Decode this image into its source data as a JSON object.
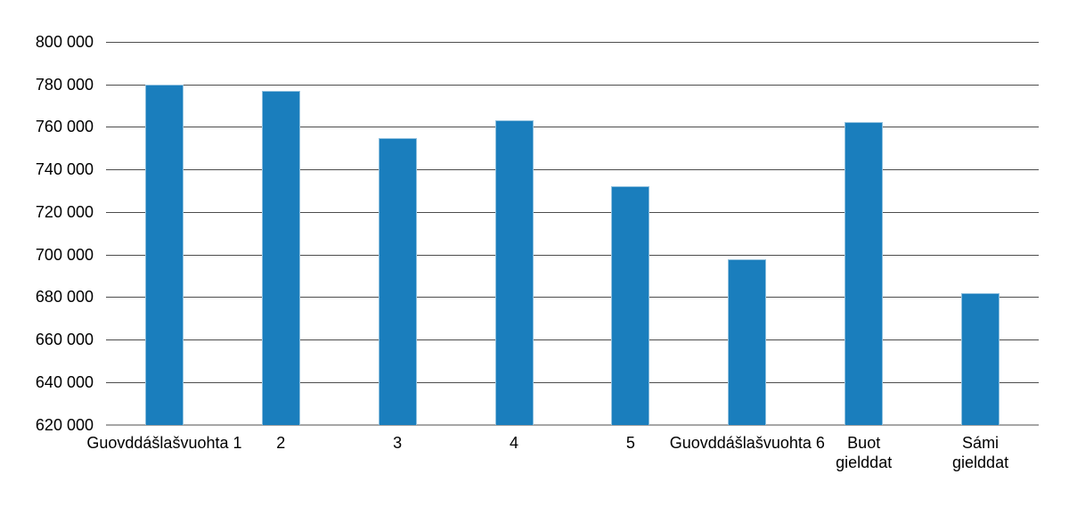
{
  "chart_data": {
    "type": "bar",
    "title": "",
    "xlabel": "",
    "ylabel": "",
    "legend": "none",
    "grid": true,
    "ylim": [
      620000,
      800000
    ],
    "ytick_step": 20000,
    "yticks": [
      {
        "value": 620000,
        "label": "620 000"
      },
      {
        "value": 640000,
        "label": "640 000"
      },
      {
        "value": 660000,
        "label": "660 000"
      },
      {
        "value": 680000,
        "label": "680 000"
      },
      {
        "value": 700000,
        "label": "700 000"
      },
      {
        "value": 720000,
        "label": "720 000"
      },
      {
        "value": 740000,
        "label": "740 000"
      },
      {
        "value": 760000,
        "label": "760 000"
      },
      {
        "value": 780000,
        "label": "780 000"
      },
      {
        "value": 800000,
        "label": "800 000"
      }
    ],
    "categories": [
      "Guovddášlašvuohta 1",
      "2",
      "3",
      "4",
      "5",
      "Guovddášlašvuohta 6",
      "Buot\ngielddat",
      "Sámi\ngielddat"
    ],
    "values": [
      780000,
      777000,
      755000,
      763500,
      732500,
      698000,
      762500,
      682000
    ],
    "colors": {
      "bar": "#1a7ebd",
      "bar_border": "#8fc0de",
      "gridline": "#4d4d4d",
      "baseline": "#a6a6a6",
      "text": "#000000",
      "background": "#ffffff"
    }
  }
}
